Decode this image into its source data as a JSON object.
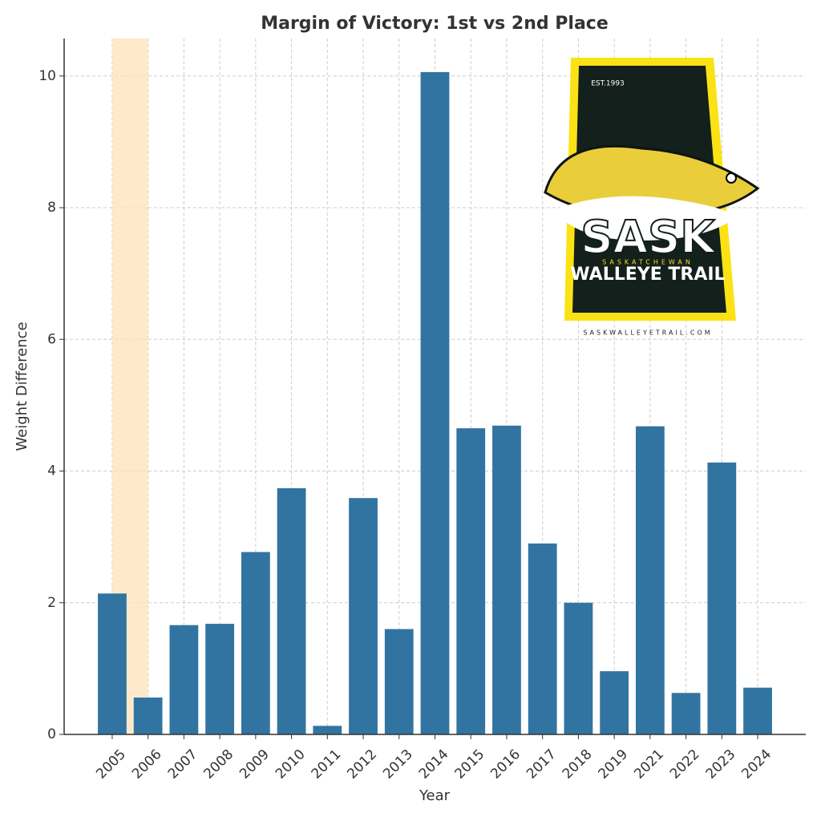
{
  "chart_data": {
    "type": "bar",
    "title": "Margin of Victory: 1st vs 2nd Place",
    "x_label": "Year",
    "y_label": "Weight Difference",
    "categories": [
      "2005",
      "2006",
      "2007",
      "2008",
      "2009",
      "2010",
      "2011",
      "2012",
      "2013",
      "2014",
      "2015",
      "2016",
      "2017",
      "2018",
      "2019",
      "2021",
      "2022",
      "2023",
      "2024"
    ],
    "values": [
      2.14,
      0.56,
      1.66,
      1.68,
      2.77,
      3.74,
      0.13,
      3.59,
      1.6,
      10.06,
      4.65,
      4.69,
      2.9,
      2.0,
      0.96,
      4.68,
      0.63,
      4.13,
      0.71
    ],
    "color": "#3274a1",
    "ylim": [
      0,
      10.57
    ],
    "yticks": [
      0,
      2,
      4,
      6,
      8,
      10
    ],
    "grid": true,
    "highlight": {
      "from": "2005",
      "to": "2006",
      "color": "#fde3b8"
    },
    "logo": {
      "est": "EST.1993",
      "main": "SASK",
      "region": "SASKATCHEWAN",
      "name": "WALLEYE TRAIL",
      "url": "SASKWALLEYETRAIL.COM"
    }
  }
}
